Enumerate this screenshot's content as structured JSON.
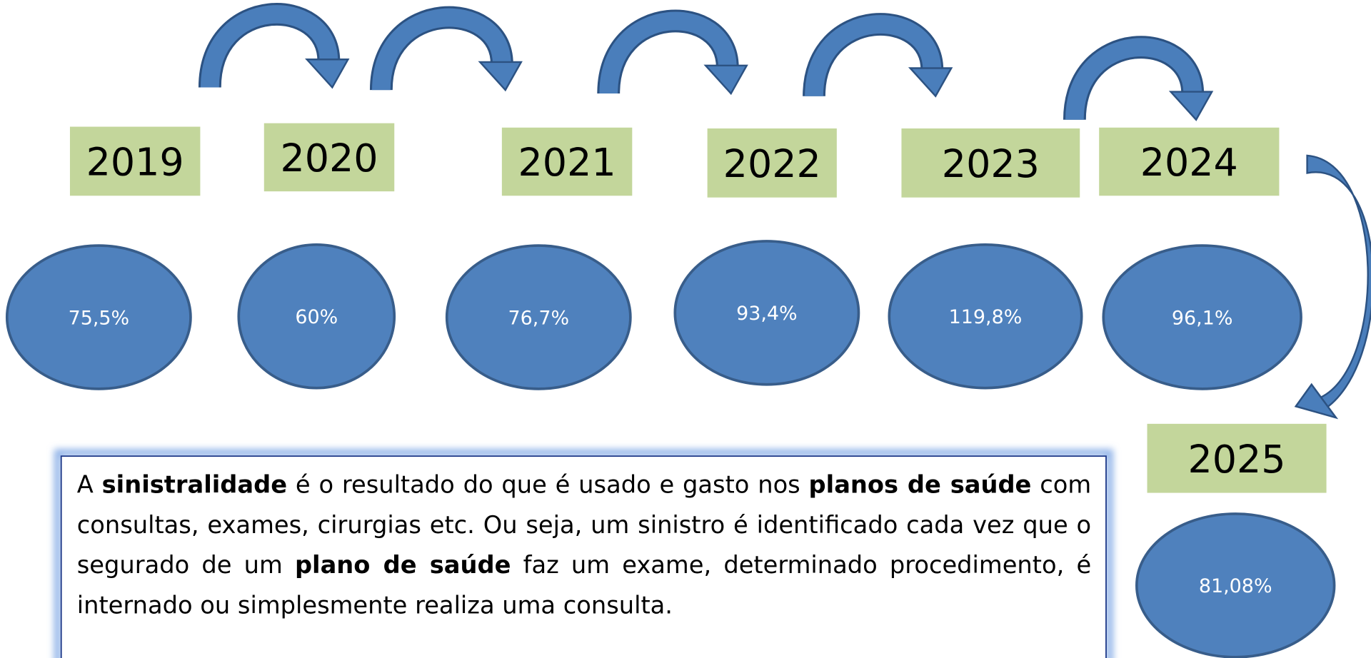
{
  "nodes": [
    {
      "year": "2019",
      "value": "75,5%"
    },
    {
      "year": "2020",
      "value": "60%"
    },
    {
      "year": "2021",
      "value": "76,7%"
    },
    {
      "year": "2022",
      "value": "93,4%"
    },
    {
      "year": "2023",
      "value": "119,8%"
    },
    {
      "year": "2024",
      "value": "96,1%"
    },
    {
      "year": "2025",
      "value": "81,08%"
    }
  ],
  "paragraph": [
    {
      "text": "A ",
      "bold": false
    },
    {
      "text": "sinistralidade",
      "bold": true
    },
    {
      "text": " é o resultado do que é usado e gasto nos ",
      "bold": false
    },
    {
      "text": "planos de saúde",
      "bold": true
    },
    {
      "text": " com consultas, exames, cirurgias etc. Ou seja, um sinistro é identificado cada vez que o segurado de um ",
      "bold": false
    },
    {
      "text": "plano de saúde",
      "bold": true
    },
    {
      "text": " faz um exame, determinado procedimento, é internado ou simplesmente realiza uma consulta.",
      "bold": false
    }
  ]
}
